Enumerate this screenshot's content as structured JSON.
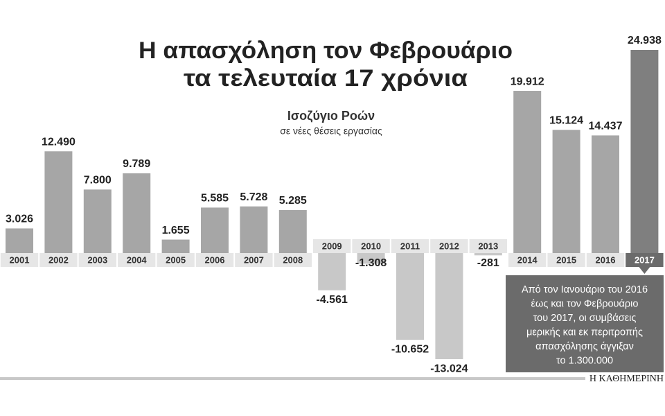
{
  "chart_data": {
    "type": "bar",
    "title": [
      "Η απασχόληση τον Φεβρουάριο",
      "τα τελευταία 17 χρόνια"
    ],
    "subtitle": "Ισοζύγιο Ροών",
    "ylabel": "σε νέες θέσεις εργασίας",
    "categories": [
      "2001",
      "2002",
      "2003",
      "2004",
      "2005",
      "2006",
      "2007",
      "2008",
      "2009",
      "2010",
      "2011",
      "2012",
      "2013",
      "2014",
      "2015",
      "2016",
      "2017"
    ],
    "values": [
      3026,
      12490,
      7800,
      9789,
      1655,
      5585,
      5728,
      5285,
      -4561,
      -1308,
      -10652,
      -13024,
      -281,
      19912,
      15124,
      14437,
      24938
    ],
    "value_labels": [
      "3.026",
      "12.490",
      "7.800",
      "9.789",
      "1.655",
      "5.585",
      "5.728",
      "5.285",
      "-4.561",
      "-1.308",
      "-10.652",
      "-13.024",
      "-281",
      "19.912",
      "15.124",
      "14.437",
      "24.938"
    ],
    "colors": [
      "#a6a6a6",
      "#a6a6a6",
      "#a6a6a6",
      "#a6a6a6",
      "#a6a6a6",
      "#a6a6a6",
      "#a6a6a6",
      "#a6a6a6",
      "#c8c8c8",
      "#c8c8c8",
      "#c8c8c8",
      "#c8c8c8",
      "#c8c8c8",
      "#a6a6a6",
      "#a6a6a6",
      "#a6a6a6",
      "#7f7f7f"
    ],
    "ylim": [
      -15000,
      25000
    ],
    "annotation": [
      "Από τον Ιανουάριο του 2016",
      "έως και τον Φεβρουάριο",
      "του 2017, οι συμβάσεις",
      "μερικής και εκ περιτροπής",
      "απασχόλησης άγγιξαν",
      "το 1.300.000"
    ],
    "source": "Η ΚΑΘΗΜΕΡΙΝΗ"
  }
}
